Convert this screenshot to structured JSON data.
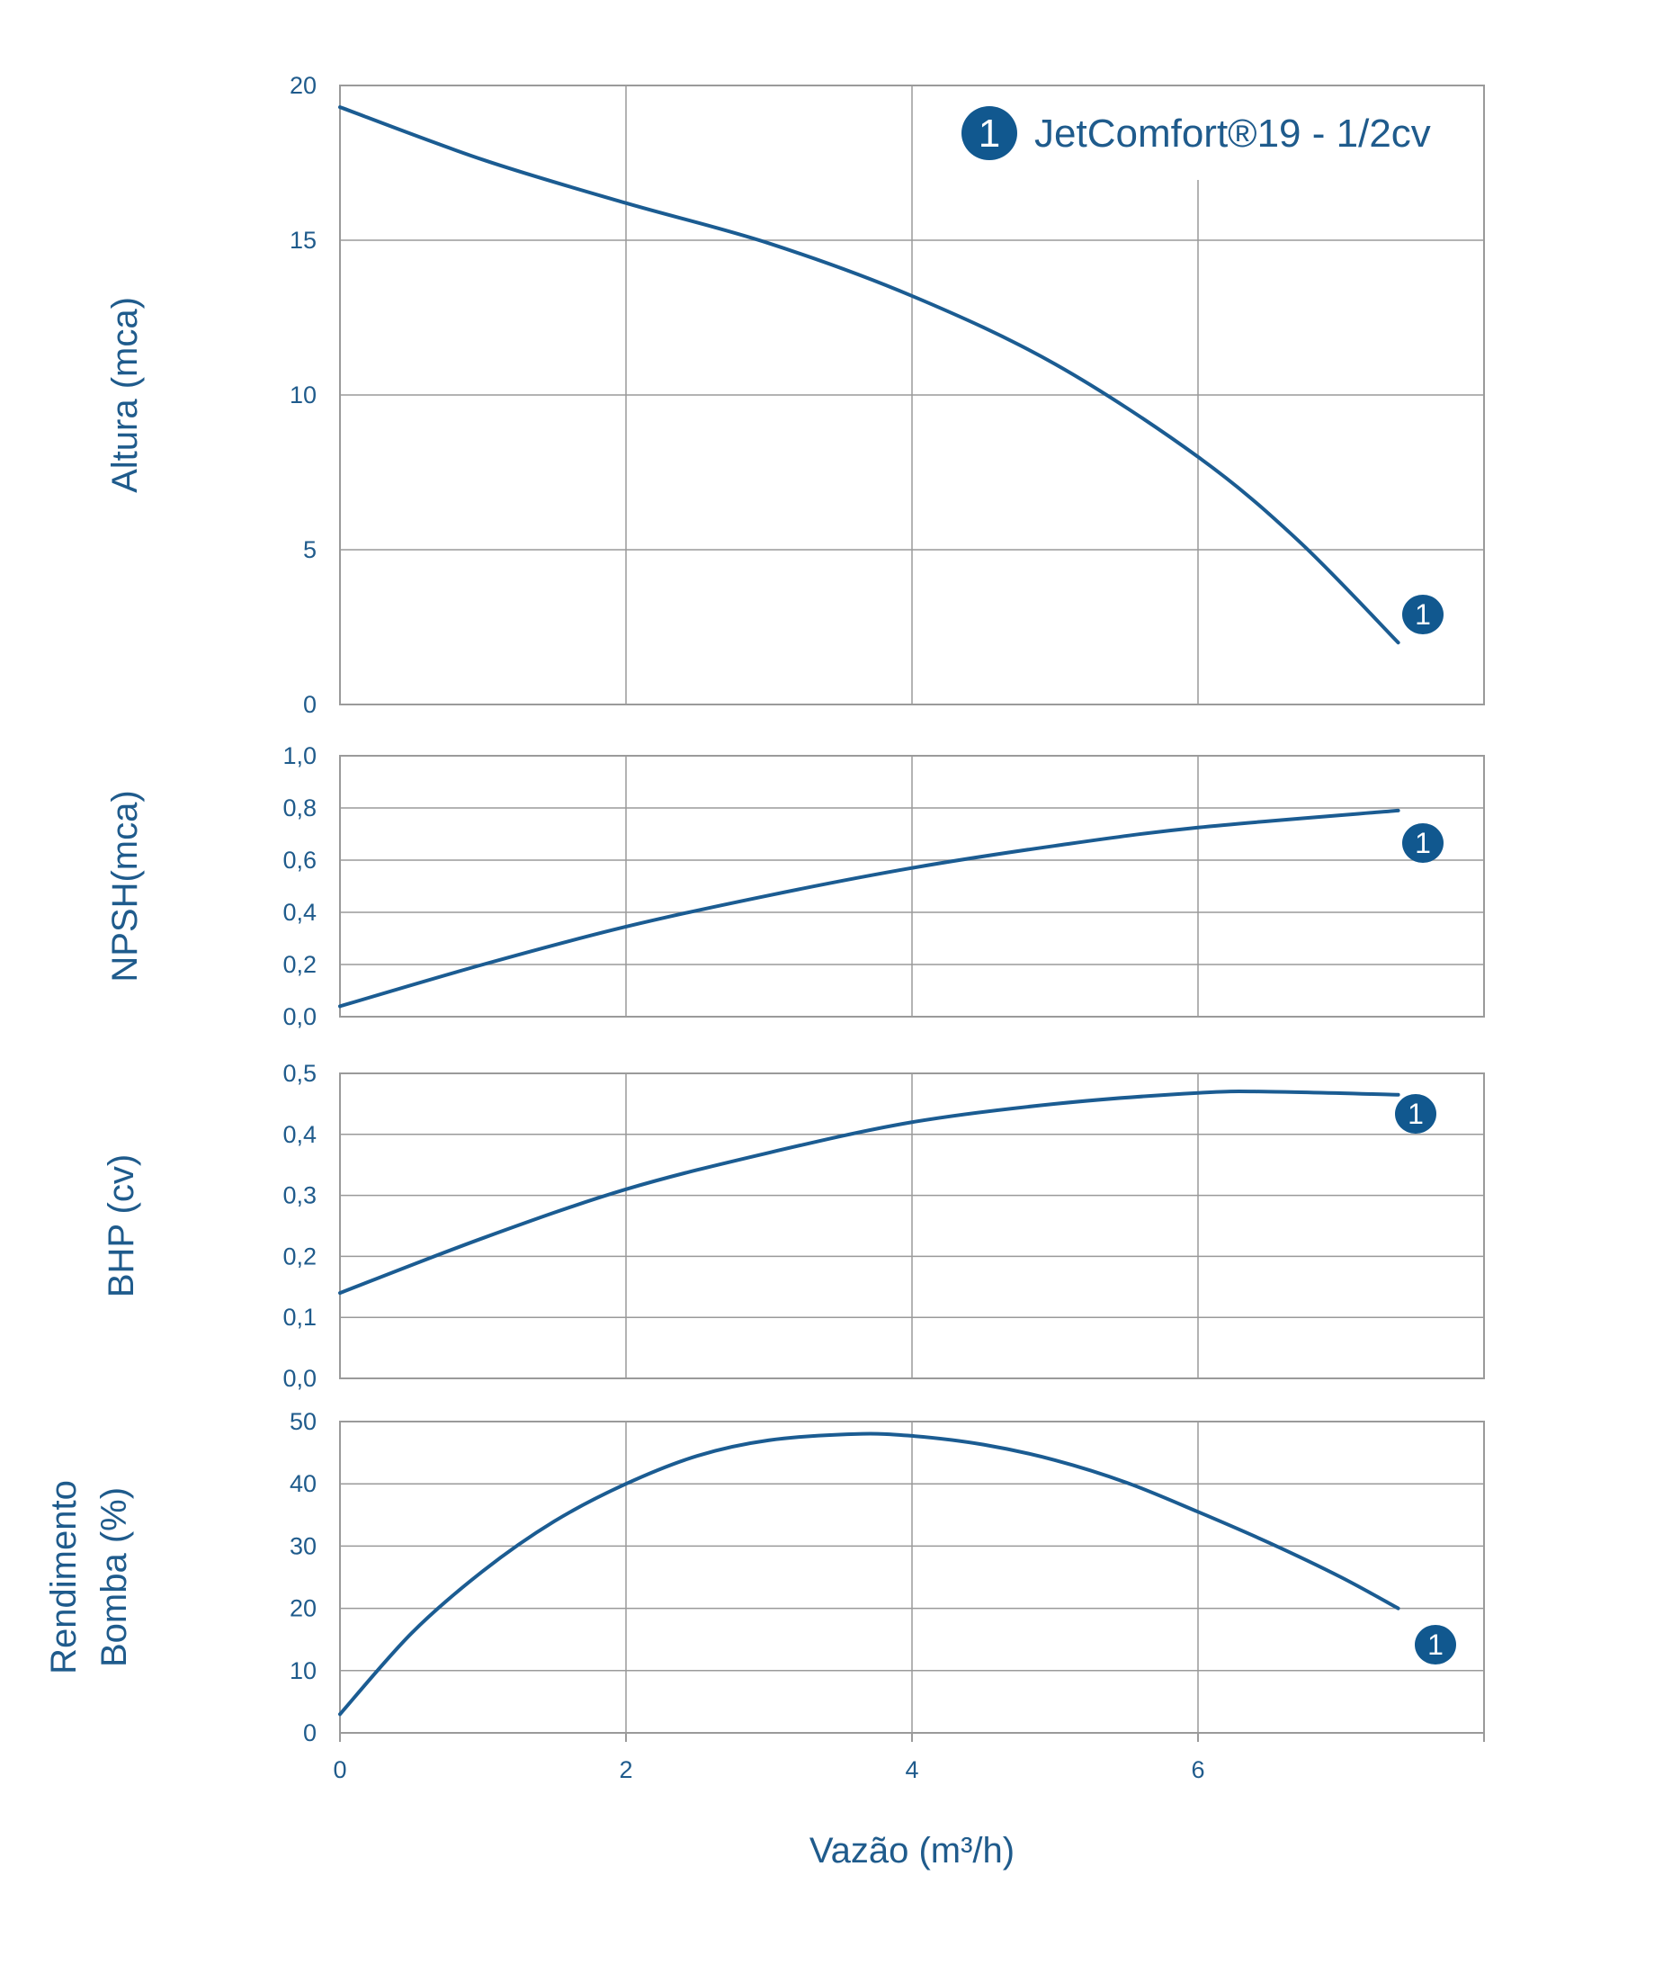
{
  "colors": {
    "curve": "#1b5c92",
    "marker": "#11588f",
    "text": "#1f5b8c",
    "grid": "#9a9a9a",
    "frame": "#9a9a9a"
  },
  "legend": {
    "marker_label": "1",
    "text": "JetComfort®19 - 1/2cv"
  },
  "chart_data": {
    "type": "line",
    "shared_x": {
      "label": "Vazão (m³/h)",
      "ticks": [
        0,
        2,
        4,
        6
      ],
      "tick_labels": [
        "0",
        "2",
        "4",
        "6"
      ],
      "range": [
        0,
        8
      ]
    },
    "panels": [
      {
        "id": "altura",
        "ylabel": "Altura (mca)",
        "ylim": [
          0,
          20
        ],
        "y_ticks": [
          0,
          5,
          10,
          15,
          20
        ],
        "y_tick_labels": [
          "0",
          "5",
          "10",
          "15",
          "20"
        ],
        "series": [
          {
            "marker_label": "1",
            "x": [
              0,
              1,
              2,
              3,
              4,
              5,
              6,
              6.7,
              7.4
            ],
            "y": [
              19.3,
              17.6,
              16.2,
              14.9,
              13.2,
              11.0,
              8.0,
              5.3,
              2.0
            ]
          }
        ]
      },
      {
        "id": "npsh",
        "ylabel": "NPSH(mca)",
        "ylim": [
          0,
          1.0
        ],
        "y_ticks": [
          0,
          0.2,
          0.4,
          0.6,
          0.8,
          1.0
        ],
        "y_tick_labels": [
          "0,0",
          "0,2",
          "0,4",
          "0,6",
          "0,8",
          "1,0"
        ],
        "series": [
          {
            "marker_label": "1",
            "x": [
              0,
              1,
              2,
              3,
              4,
              5,
              6,
              7.4
            ],
            "y": [
              0.04,
              0.2,
              0.345,
              0.465,
              0.57,
              0.655,
              0.725,
              0.79
            ]
          }
        ]
      },
      {
        "id": "bhp",
        "ylabel": "BHP (cv)",
        "ylim": [
          0,
          0.5
        ],
        "y_ticks": [
          0,
          0.1,
          0.2,
          0.3,
          0.4,
          0.5
        ],
        "y_tick_labels": [
          "0,0",
          "0,1",
          "0,2",
          "0,3",
          "0,4",
          "0,5"
        ],
        "series": [
          {
            "marker_label": "1",
            "x": [
              0,
              1,
              2,
              3,
              4,
              5,
              6,
              6.5,
              7.4
            ],
            "y": [
              0.14,
              0.23,
              0.31,
              0.37,
              0.42,
              0.45,
              0.468,
              0.47,
              0.465
            ]
          }
        ]
      },
      {
        "id": "rendimento",
        "ylabel_lines": [
          "Rendimento",
          "Bomba (%)"
        ],
        "ylim": [
          0,
          50
        ],
        "y_ticks": [
          0,
          10,
          20,
          30,
          40,
          50
        ],
        "y_tick_labels": [
          "0",
          "10",
          "20",
          "30",
          "40",
          "50"
        ],
        "series": [
          {
            "marker_label": "1",
            "x": [
              0,
              0.5,
              1,
              1.5,
              2,
              2.5,
              3,
              3.6,
              4,
              4.5,
              5,
              5.5,
              6,
              6.5,
              7,
              7.4
            ],
            "y": [
              3,
              16,
              26,
              34,
              40,
              44.5,
              47,
              48,
              47.7,
              46.3,
              43.8,
              40.2,
              35.5,
              30.5,
              25,
              20
            ]
          }
        ]
      }
    ]
  }
}
